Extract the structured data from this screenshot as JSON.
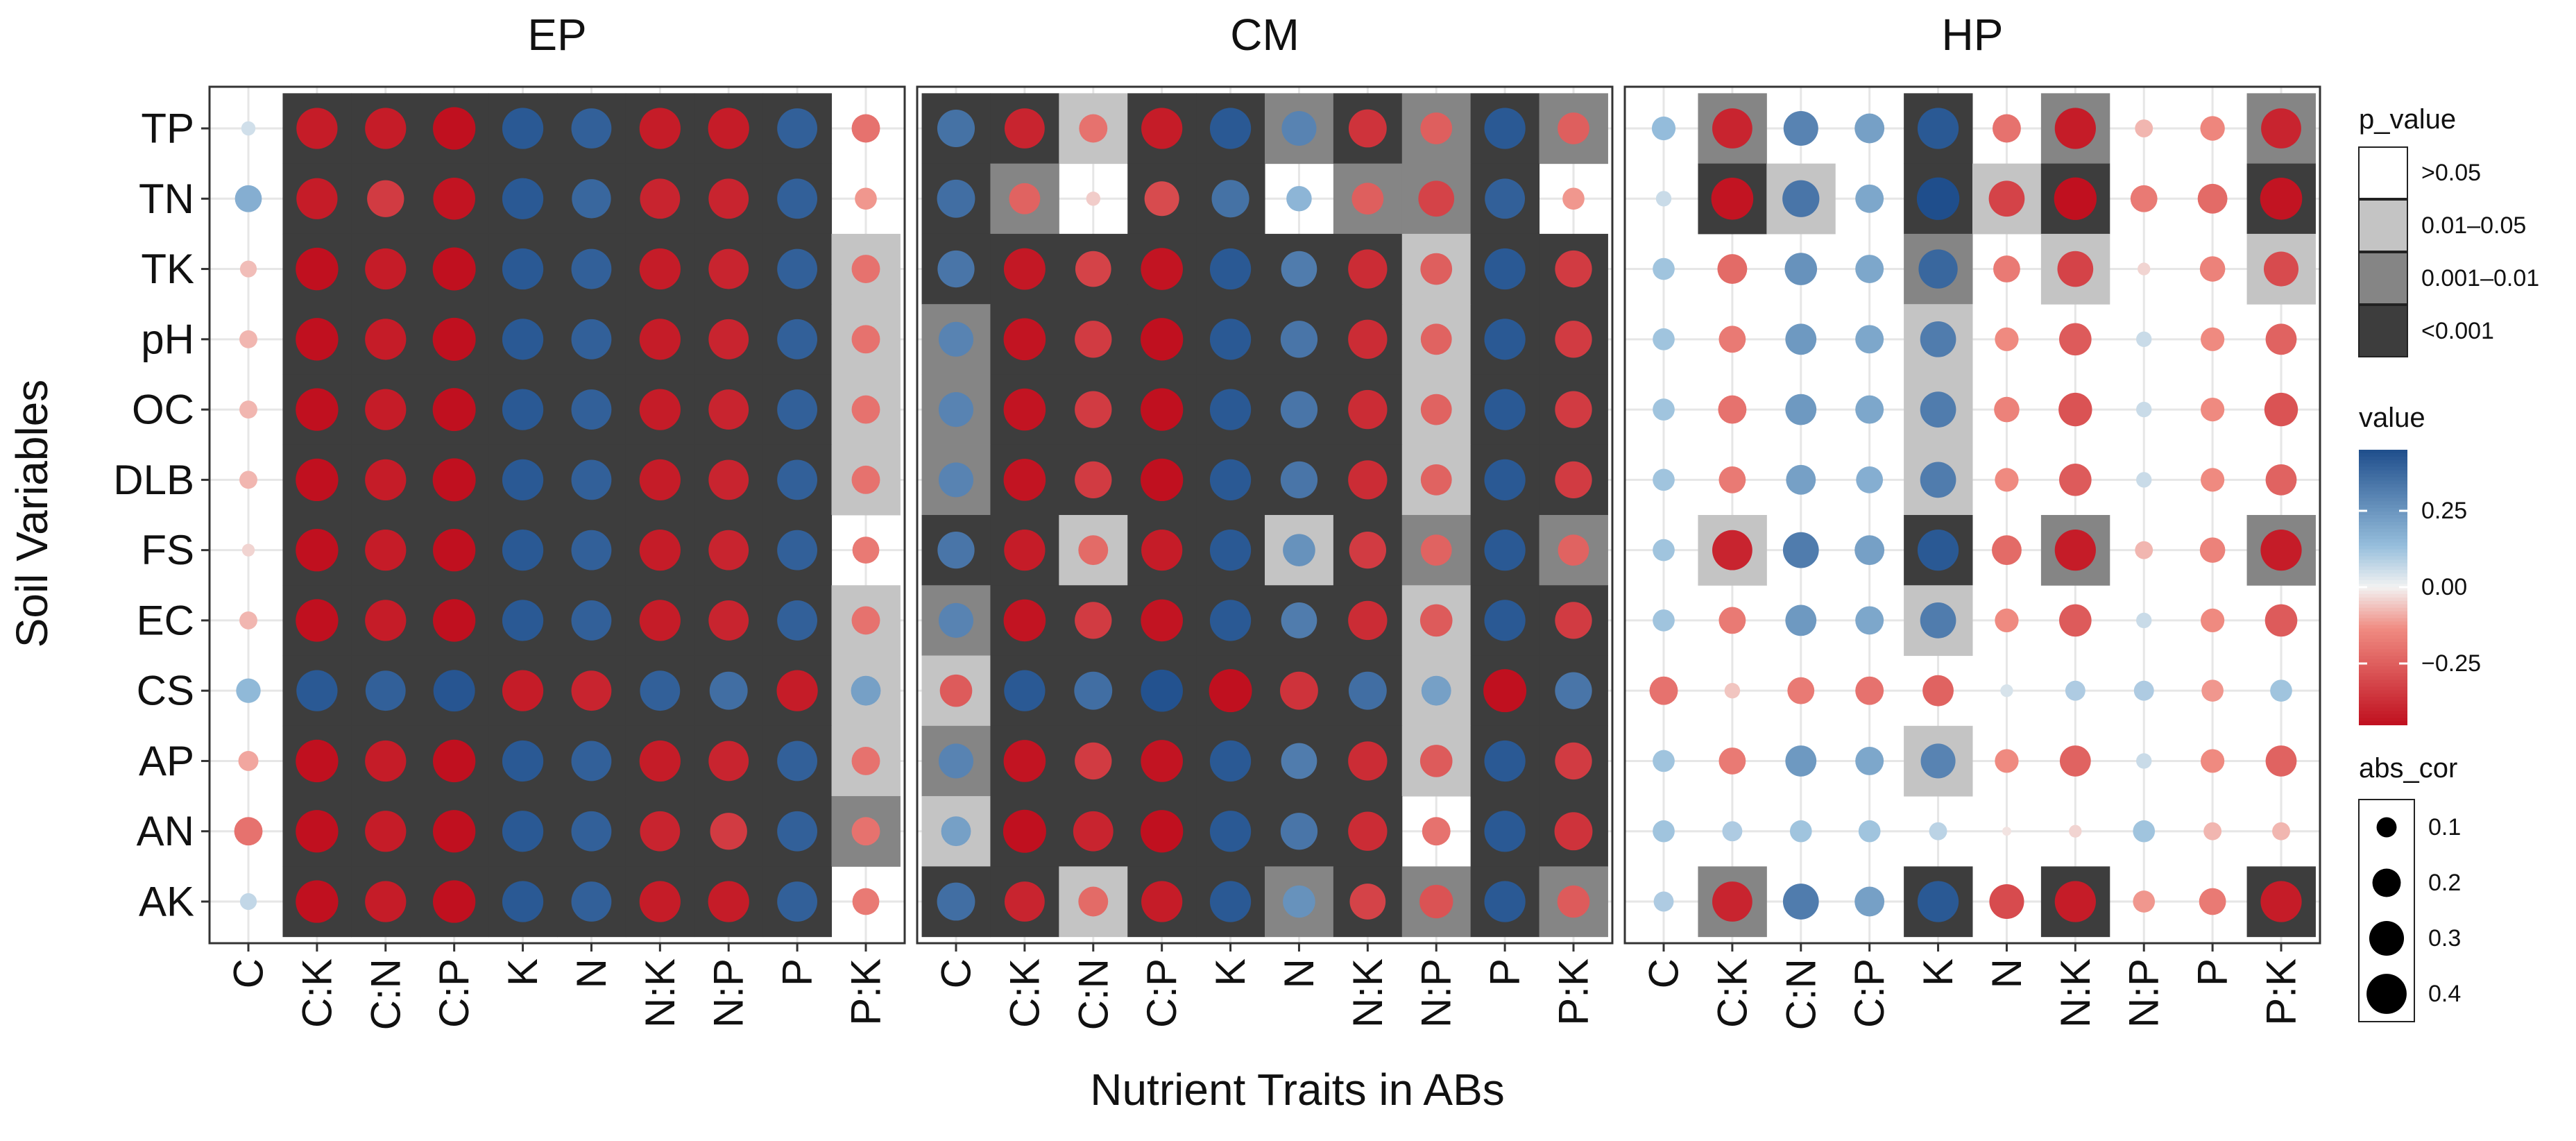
{
  "chart_data": {
    "type": "heatmap",
    "xlabel": "Nutrient Traits in ABs",
    "ylabel": "Soil Variables",
    "rows": [
      "TP",
      "TN",
      "TK",
      "pH",
      "OC",
      "DLB",
      "FS",
      "EC",
      "CS",
      "AP",
      "AN",
      "AK"
    ],
    "columns": [
      "C",
      "C:K",
      "C:N",
      "C:P",
      "K",
      "N",
      "N:K",
      "N:P",
      "P",
      "P:K"
    ],
    "color_scale": {
      "min": -0.45,
      "max": 0.45,
      "ticks": [
        0.25,
        0.0,
        -0.25
      ],
      "tick_labels": [
        "0.25",
        "0.00",
        "−0.25"
      ],
      "high": "#1f4e8c",
      "mid": "#f2f2f2",
      "low": "#c0101f"
    },
    "size_scale": {
      "ticks": [
        0.1,
        0.2,
        0.3,
        0.4
      ],
      "tick_labels": [
        "0.1",
        "0.2",
        "0.3",
        "0.4"
      ]
    },
    "p_value_levels": [
      {
        "label": ">0.05",
        "color": "#ffffff"
      },
      {
        "label": "0.01–0.05",
        "color": "#c4c4c4"
      },
      {
        "label": "0.001–0.01",
        "color": "#858585"
      },
      {
        "label": "<0.001",
        "color": "#3d3d3d"
      }
    ],
    "legend": {
      "p_value_title": "p_value",
      "value_title": "value",
      "abs_cor_title": "abs_cor",
      "position": "right"
    },
    "panels": [
      {
        "title": "EP",
        "values": [
          [
            0.05,
            -0.42,
            -0.42,
            -0.45,
            0.42,
            0.4,
            -0.42,
            -0.42,
            0.4,
            -0.2
          ],
          [
            0.18,
            -0.42,
            -0.34,
            -0.44,
            0.42,
            0.38,
            -0.4,
            -0.4,
            0.4,
            -0.12
          ],
          [
            -0.07,
            -0.45,
            -0.42,
            -0.46,
            0.42,
            0.4,
            -0.42,
            -0.4,
            0.4,
            -0.2
          ],
          [
            -0.08,
            -0.45,
            -0.42,
            -0.46,
            0.42,
            0.4,
            -0.42,
            -0.4,
            0.4,
            -0.2
          ],
          [
            -0.08,
            -0.45,
            -0.42,
            -0.46,
            0.42,
            0.4,
            -0.42,
            -0.4,
            0.4,
            -0.2
          ],
          [
            -0.08,
            -0.45,
            -0.42,
            -0.46,
            0.42,
            0.4,
            -0.42,
            -0.4,
            0.4,
            -0.2
          ],
          [
            -0.04,
            -0.45,
            -0.42,
            -0.45,
            0.42,
            0.4,
            -0.42,
            -0.4,
            0.4,
            -0.18
          ],
          [
            -0.08,
            -0.45,
            -0.42,
            -0.45,
            0.42,
            0.4,
            -0.42,
            -0.4,
            0.4,
            -0.2
          ],
          [
            0.15,
            0.42,
            0.4,
            0.43,
            -0.42,
            -0.4,
            0.4,
            0.36,
            -0.42,
            0.22
          ],
          [
            -0.1,
            -0.45,
            -0.42,
            -0.45,
            0.42,
            0.4,
            -0.42,
            -0.4,
            0.4,
            -0.2
          ],
          [
            -0.2,
            -0.45,
            -0.42,
            -0.45,
            0.42,
            0.4,
            -0.4,
            -0.34,
            0.4,
            -0.2
          ],
          [
            0.07,
            -0.45,
            -0.42,
            -0.45,
            0.42,
            0.4,
            -0.42,
            -0.42,
            0.4,
            -0.18
          ]
        ],
        "p_levels": [
          [
            0,
            3,
            3,
            3,
            3,
            3,
            3,
            3,
            3,
            0
          ],
          [
            0,
            3,
            3,
            3,
            3,
            3,
            3,
            3,
            3,
            0
          ],
          [
            0,
            3,
            3,
            3,
            3,
            3,
            3,
            3,
            3,
            1
          ],
          [
            0,
            3,
            3,
            3,
            3,
            3,
            3,
            3,
            3,
            1
          ],
          [
            0,
            3,
            3,
            3,
            3,
            3,
            3,
            3,
            3,
            1
          ],
          [
            0,
            3,
            3,
            3,
            3,
            3,
            3,
            3,
            3,
            1
          ],
          [
            0,
            3,
            3,
            3,
            3,
            3,
            3,
            3,
            3,
            0
          ],
          [
            0,
            3,
            3,
            3,
            3,
            3,
            3,
            3,
            3,
            1
          ],
          [
            0,
            3,
            3,
            3,
            3,
            3,
            3,
            3,
            3,
            1
          ],
          [
            0,
            3,
            3,
            3,
            3,
            3,
            3,
            3,
            3,
            1
          ],
          [
            0,
            3,
            3,
            3,
            3,
            3,
            3,
            3,
            3,
            2
          ],
          [
            0,
            3,
            3,
            3,
            3,
            3,
            3,
            3,
            3,
            0
          ]
        ]
      },
      {
        "title": "CM",
        "values": [
          [
            0.35,
            -0.4,
            -0.2,
            -0.42,
            0.42,
            0.3,
            -0.36,
            -0.25,
            0.42,
            -0.25
          ],
          [
            0.36,
            -0.24,
            -0.05,
            -0.3,
            0.35,
            0.16,
            -0.25,
            -0.32,
            0.4,
            -0.12
          ],
          [
            0.34,
            -0.43,
            -0.32,
            -0.44,
            0.42,
            0.32,
            -0.38,
            -0.25,
            0.42,
            -0.34
          ],
          [
            0.3,
            -0.44,
            -0.34,
            -0.45,
            0.42,
            0.34,
            -0.38,
            -0.24,
            0.42,
            -0.34
          ],
          [
            0.3,
            -0.44,
            -0.34,
            -0.45,
            0.42,
            0.34,
            -0.38,
            -0.24,
            0.42,
            -0.34
          ],
          [
            0.3,
            -0.44,
            -0.34,
            -0.45,
            0.42,
            0.34,
            -0.38,
            -0.24,
            0.42,
            -0.34
          ],
          [
            0.34,
            -0.42,
            -0.22,
            -0.42,
            0.42,
            0.26,
            -0.34,
            -0.24,
            0.42,
            -0.24
          ],
          [
            0.3,
            -0.44,
            -0.34,
            -0.44,
            0.42,
            0.32,
            -0.38,
            -0.26,
            0.42,
            -0.34
          ],
          [
            -0.26,
            0.42,
            0.36,
            0.44,
            -0.46,
            -0.36,
            0.36,
            0.22,
            -0.46,
            0.34
          ],
          [
            0.3,
            -0.44,
            -0.34,
            -0.44,
            0.42,
            0.32,
            -0.38,
            -0.26,
            0.42,
            -0.34
          ],
          [
            0.22,
            -0.46,
            -0.4,
            -0.45,
            0.42,
            0.34,
            -0.38,
            -0.2,
            0.42,
            -0.36
          ],
          [
            0.36,
            -0.4,
            -0.22,
            -0.42,
            0.42,
            0.26,
            -0.32,
            -0.28,
            0.42,
            -0.26
          ]
        ],
        "p_levels": [
          [
            3,
            3,
            1,
            3,
            3,
            2,
            3,
            2,
            3,
            2
          ],
          [
            3,
            2,
            0,
            3,
            3,
            0,
            2,
            2,
            3,
            0
          ],
          [
            3,
            3,
            3,
            3,
            3,
            3,
            3,
            1,
            3,
            3
          ],
          [
            2,
            3,
            3,
            3,
            3,
            3,
            3,
            1,
            3,
            3
          ],
          [
            2,
            3,
            3,
            3,
            3,
            3,
            3,
            1,
            3,
            3
          ],
          [
            2,
            3,
            3,
            3,
            3,
            3,
            3,
            1,
            3,
            3
          ],
          [
            3,
            3,
            1,
            3,
            3,
            1,
            3,
            2,
            3,
            2
          ],
          [
            2,
            3,
            3,
            3,
            3,
            3,
            3,
            1,
            3,
            3
          ],
          [
            1,
            3,
            3,
            3,
            3,
            3,
            3,
            1,
            3,
            3
          ],
          [
            2,
            3,
            3,
            3,
            3,
            3,
            3,
            1,
            3,
            3
          ],
          [
            1,
            3,
            3,
            3,
            3,
            3,
            3,
            0,
            3,
            3
          ],
          [
            3,
            3,
            1,
            3,
            3,
            2,
            3,
            2,
            3,
            2
          ]
        ]
      },
      {
        "title": "HP",
        "values": [
          [
            0.14,
            -0.4,
            0.3,
            0.22,
            0.42,
            -0.2,
            -0.42,
            -0.08,
            -0.15,
            -0.4
          ],
          [
            0.06,
            -0.44,
            0.34,
            0.2,
            0.45,
            -0.32,
            -0.45,
            -0.18,
            -0.22,
            -0.44
          ],
          [
            0.12,
            -0.22,
            0.26,
            0.2,
            0.38,
            -0.18,
            -0.32,
            -0.04,
            -0.16,
            -0.3
          ],
          [
            0.12,
            -0.18,
            0.24,
            0.2,
            0.32,
            -0.14,
            -0.26,
            0.06,
            -0.14,
            -0.24
          ],
          [
            0.12,
            -0.2,
            0.24,
            0.2,
            0.32,
            -0.16,
            -0.28,
            0.06,
            -0.14,
            -0.28
          ],
          [
            0.12,
            -0.18,
            0.22,
            0.18,
            0.32,
            -0.14,
            -0.26,
            0.06,
            -0.14,
            -0.24
          ],
          [
            0.12,
            -0.4,
            0.32,
            0.22,
            0.42,
            -0.22,
            -0.42,
            -0.08,
            -0.16,
            -0.42
          ],
          [
            0.12,
            -0.18,
            0.24,
            0.2,
            0.32,
            -0.14,
            -0.26,
            0.06,
            -0.14,
            -0.26
          ],
          [
            -0.2,
            -0.06,
            -0.18,
            -0.2,
            -0.24,
            0.04,
            0.1,
            0.1,
            -0.12,
            0.12
          ],
          [
            0.12,
            -0.18,
            0.24,
            0.2,
            0.3,
            -0.14,
            -0.24,
            0.06,
            -0.14,
            -0.24
          ],
          [
            0.12,
            0.1,
            0.12,
            0.12,
            0.08,
            -0.02,
            -0.04,
            0.12,
            -0.08,
            -0.08
          ],
          [
            0.1,
            -0.4,
            0.32,
            0.22,
            0.42,
            -0.3,
            -0.42,
            -0.12,
            -0.18,
            -0.42
          ]
        ],
        "p_levels": [
          [
            0,
            2,
            0,
            0,
            3,
            0,
            2,
            0,
            0,
            2
          ],
          [
            0,
            3,
            1,
            0,
            3,
            1,
            3,
            0,
            0,
            3
          ],
          [
            0,
            0,
            0,
            0,
            2,
            0,
            1,
            0,
            0,
            1
          ],
          [
            0,
            0,
            0,
            0,
            1,
            0,
            0,
            0,
            0,
            0
          ],
          [
            0,
            0,
            0,
            0,
            1,
            0,
            0,
            0,
            0,
            0
          ],
          [
            0,
            0,
            0,
            0,
            1,
            0,
            0,
            0,
            0,
            0
          ],
          [
            0,
            1,
            0,
            0,
            3,
            0,
            2,
            0,
            0,
            2
          ],
          [
            0,
            0,
            0,
            0,
            1,
            0,
            0,
            0,
            0,
            0
          ],
          [
            0,
            0,
            0,
            0,
            0,
            0,
            0,
            0,
            0,
            0
          ],
          [
            0,
            0,
            0,
            0,
            1,
            0,
            0,
            0,
            0,
            0
          ],
          [
            0,
            0,
            0,
            0,
            0,
            0,
            0,
            0,
            0,
            0
          ],
          [
            0,
            2,
            0,
            0,
            3,
            0,
            3,
            0,
            0,
            3
          ]
        ]
      }
    ]
  }
}
